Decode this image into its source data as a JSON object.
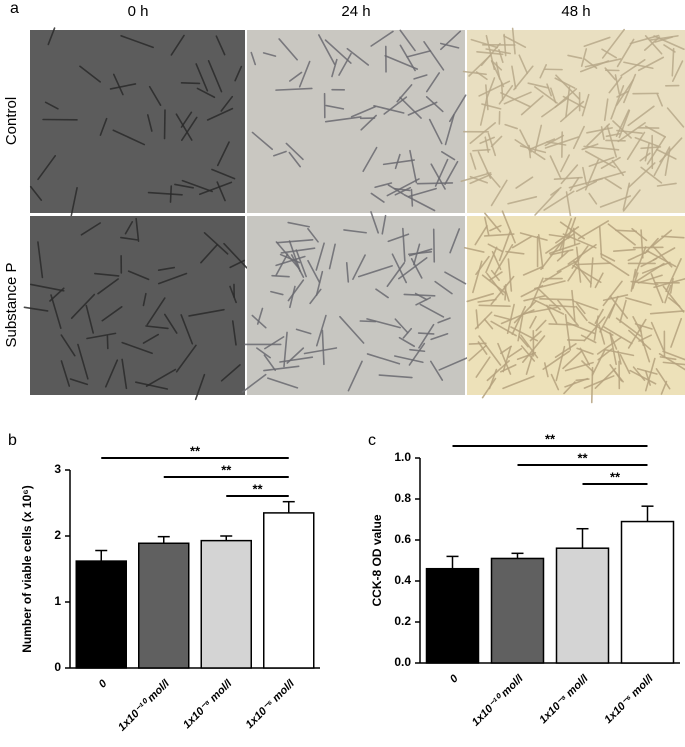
{
  "panel_a": {
    "label": "a",
    "columns": [
      "0 h",
      "24 h",
      "48 h"
    ],
    "rows": [
      "Control",
      "Substance P"
    ]
  },
  "chart_data": [
    {
      "type": "bar",
      "panel_label": "b",
      "y_label": "Number of viable cells (x 10⁶)",
      "categories": [
        "0",
        "1x10⁻¹⁰ mol/l",
        "1x10⁻⁸ mol/l",
        "1x10⁻⁶ mol/l"
      ],
      "values": [
        1.62,
        1.89,
        1.93,
        2.35
      ],
      "errors": [
        0.16,
        0.1,
        0.07,
        0.17
      ],
      "colors": [
        "#000000",
        "#606060",
        "#d4d4d4",
        "#ffffff"
      ],
      "ylim": [
        0,
        3
      ],
      "yticks": [
        0,
        1,
        2,
        3
      ],
      "annotations": [
        "**",
        "**",
        "**"
      ]
    },
    {
      "type": "bar",
      "panel_label": "c",
      "y_label": "CCK-8 OD value",
      "categories": [
        "0",
        "1x10⁻¹⁰ mol/l",
        "1x10⁻⁸ mol/l",
        "1x10⁻⁶ mol/l"
      ],
      "values": [
        0.46,
        0.51,
        0.56,
        0.69
      ],
      "errors": [
        0.06,
        0.025,
        0.095,
        0.075
      ],
      "colors": [
        "#000000",
        "#606060",
        "#d4d4d4",
        "#ffffff"
      ],
      "ylim": [
        0,
        1
      ],
      "yticks": [
        {
          "value": 0,
          "label": "0.0"
        },
        0.2,
        0.4,
        0.6,
        0.8,
        {
          "value": 1,
          "label": "1.0"
        }
      ],
      "annotations": [
        "**",
        "**",
        "**"
      ]
    }
  ]
}
